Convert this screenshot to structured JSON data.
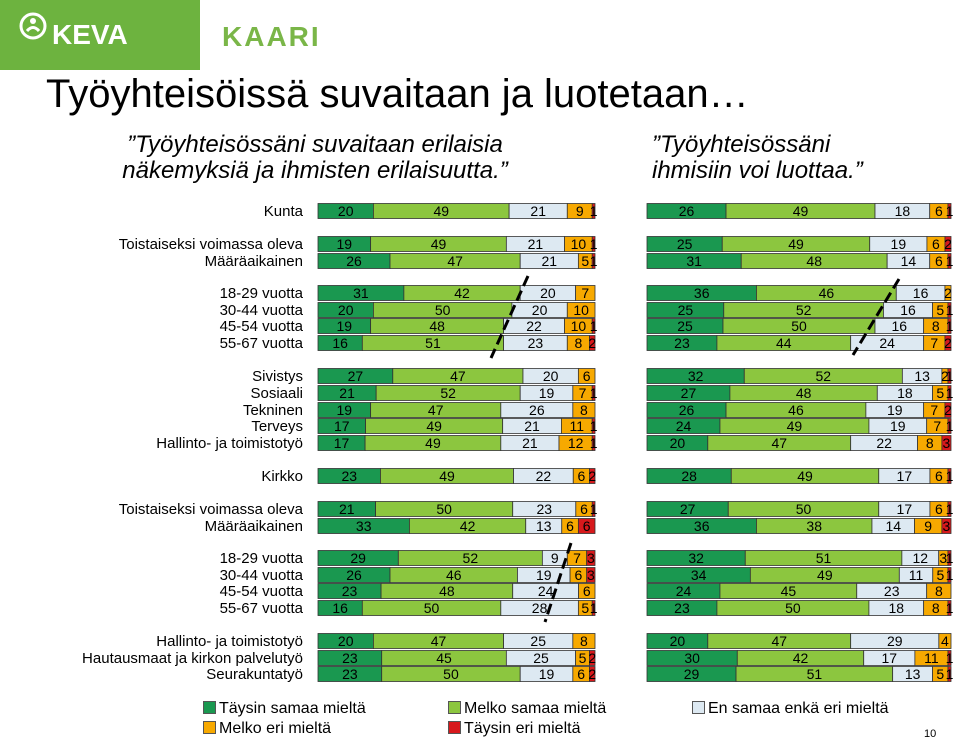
{
  "brand": {
    "logo1": "KEVA",
    "logo2": "KAARI",
    "colors": {
      "green_bar": "#6db33f",
      "logo_text": "#ffffff",
      "kaari_text": "#7ab648"
    }
  },
  "title": "Työyhteisöissä suvaitaan ja luotetaan…",
  "subtitle_left": [
    "”Työyhteisössäni suvaitaan erilaisia",
    "näkemyksiä ja ihmisten erilaisuutta.”"
  ],
  "subtitle_right": [
    "”Työyhteisössäni",
    "ihmisiin voi luottaa.”"
  ],
  "page_number": "10",
  "chart_data": {
    "type": "bar",
    "stacked": "horizontal-100-percent",
    "colors": [
      "#1a9850",
      "#8cc63f",
      "#dde9f2",
      "#f7a900",
      "#d7191c"
    ],
    "legend": [
      "Täysin samaa mieltä",
      "Melko samaa mieltä",
      "En samaa enkä eri mieltä",
      "Melko eri mieltä",
      "Täysin eri mieltä"
    ],
    "rows": [
      {
        "label": "Kunta",
        "left": [
          20,
          49,
          21,
          9,
          1
        ],
        "right": [
          26,
          49,
          18,
          6,
          1
        ],
        "left_text": [
          "20",
          "49",
          "21",
          "9",
          "1"
        ],
        "right_text": [
          "26",
          "49",
          "18",
          "6",
          "1"
        ]
      },
      {
        "label": "Toistaiseksi voimassa oleva",
        "left": [
          19,
          49,
          21,
          10,
          1
        ],
        "right": [
          25,
          49,
          19,
          6,
          2
        ],
        "left_text": [
          "19",
          "49",
          "21",
          "10",
          "1"
        ],
        "right_text": [
          "25",
          "49",
          "19",
          "6",
          "2"
        ]
      },
      {
        "label": "Määräaikainen",
        "left": [
          26,
          47,
          21,
          5,
          1
        ],
        "right": [
          31,
          48,
          14,
          6,
          1
        ],
        "left_text": [
          "26",
          "47",
          "21",
          "5",
          "1"
        ],
        "right_text": [
          "31",
          "48",
          "14",
          "6",
          "1"
        ]
      },
      {
        "label": "18-29 vuotta",
        "left": [
          31,
          42,
          20,
          7,
          0
        ],
        "right": [
          36,
          46,
          16,
          2,
          0
        ],
        "left_text": [
          "31",
          "42",
          "20",
          "7",
          ""
        ],
        "right_text": [
          "36",
          "46",
          "16",
          "2",
          ""
        ]
      },
      {
        "label": "30-44 vuotta",
        "left": [
          20,
          50,
          20,
          10,
          0
        ],
        "right": [
          25,
          52,
          16,
          5,
          1
        ],
        "left_text": [
          "20",
          "50",
          "20",
          "10",
          ""
        ],
        "right_text": [
          "25",
          "52",
          "16",
          "5",
          "1"
        ]
      },
      {
        "label": "45-54 vuotta",
        "left": [
          19,
          48,
          22,
          10,
          1
        ],
        "right": [
          25,
          50,
          16,
          8,
          1
        ],
        "left_text": [
          "19",
          "48",
          "22",
          "10",
          "1"
        ],
        "right_text": [
          "25",
          "50",
          "16",
          "8",
          "1"
        ]
      },
      {
        "label": "55-67 vuotta",
        "left": [
          16,
          51,
          23,
          8,
          2
        ],
        "right": [
          23,
          44,
          24,
          7,
          2
        ],
        "left_text": [
          "16",
          "51",
          "23",
          "8",
          "2"
        ],
        "right_text": [
          "23",
          "44",
          "24",
          "7",
          "2"
        ]
      },
      {
        "label": "Sivistys",
        "left": [
          27,
          47,
          20,
          6,
          0
        ],
        "right": [
          32,
          52,
          13,
          2,
          1
        ],
        "left_text": [
          "27",
          "47",
          "20",
          "6",
          ""
        ],
        "right_text": [
          "32",
          "52",
          "13",
          "2",
          "1"
        ]
      },
      {
        "label": "Sosiaali",
        "left": [
          21,
          52,
          19,
          7,
          1
        ],
        "right": [
          27,
          48,
          18,
          5,
          1
        ],
        "left_text": [
          "21",
          "52",
          "19",
          "7",
          "1"
        ],
        "right_text": [
          "27",
          "48",
          "18",
          "5",
          "1"
        ]
      },
      {
        "label": "Tekninen",
        "left": [
          19,
          47,
          26,
          8,
          0
        ],
        "right": [
          26,
          46,
          19,
          7,
          2
        ],
        "left_text": [
          "19",
          "47",
          "26",
          "8",
          ""
        ],
        "right_text": [
          "26",
          "46",
          "19",
          "7",
          "2"
        ]
      },
      {
        "label": "Terveys",
        "left": [
          17,
          49,
          21,
          11,
          1
        ],
        "right": [
          24,
          49,
          19,
          7,
          1
        ],
        "left_text": [
          "17",
          "49",
          "21",
          "11",
          "1"
        ],
        "right_text": [
          "24",
          "49",
          "19",
          "7",
          "1"
        ]
      },
      {
        "label": "Hallinto- ja toimistotyö",
        "left": [
          17,
          49,
          21,
          12,
          1
        ],
        "right": [
          20,
          47,
          22,
          8,
          3
        ],
        "left_text": [
          "17",
          "49",
          "21",
          "12",
          "1"
        ],
        "right_text": [
          "20",
          "47",
          "22",
          "8",
          "3"
        ]
      },
      {
        "label": "Kirkko",
        "left": [
          23,
          49,
          22,
          6,
          2
        ],
        "right": [
          28,
          49,
          17,
          6,
          1
        ],
        "left_text": [
          "23",
          "49",
          "22",
          "6",
          "2"
        ],
        "right_text": [
          "28",
          "49",
          "17",
          "6",
          "1"
        ]
      },
      {
        "label": "Toistaiseksi voimassa oleva",
        "left": [
          21,
          50,
          23,
          6,
          1
        ],
        "right": [
          27,
          50,
          17,
          6,
          1
        ],
        "left_text": [
          "21",
          "50",
          "23",
          "6",
          "1"
        ],
        "right_text": [
          "27",
          "50",
          "17",
          "6",
          "1"
        ]
      },
      {
        "label": "Määräaikainen",
        "left": [
          33,
          42,
          13,
          6,
          6
        ],
        "right": [
          36,
          38,
          14,
          9,
          3
        ],
        "left_text": [
          "33",
          "42",
          "13",
          "6",
          "6"
        ],
        "right_text": [
          "36",
          "38",
          "14",
          "9",
          "3"
        ]
      },
      {
        "label": "18-29 vuotta",
        "left": [
          29,
          52,
          9,
          7,
          3
        ],
        "right": [
          32,
          51,
          12,
          3,
          1
        ],
        "left_text": [
          "29",
          "52",
          "9",
          "7",
          "3"
        ],
        "right_text": [
          "32",
          "51",
          "12",
          "3",
          "1"
        ]
      },
      {
        "label": "30-44 vuotta",
        "left": [
          26,
          46,
          19,
          6,
          3
        ],
        "right": [
          34,
          49,
          11,
          5,
          1
        ],
        "left_text": [
          "26",
          "46",
          "19",
          "6",
          "3"
        ],
        "right_text": [
          "34",
          "49",
          "11",
          "5",
          "1"
        ]
      },
      {
        "label": "45-54 vuotta",
        "left": [
          23,
          48,
          24,
          6,
          0
        ],
        "right": [
          24,
          45,
          23,
          8,
          0
        ],
        "left_text": [
          "23",
          "48",
          "24",
          "6",
          ""
        ],
        "right_text": [
          "24",
          "45",
          "23",
          "8",
          ""
        ]
      },
      {
        "label": "55-67 vuotta",
        "left": [
          16,
          50,
          28,
          5,
          1
        ],
        "right": [
          23,
          50,
          18,
          8,
          1
        ],
        "left_text": [
          "16",
          "50",
          "28",
          "5",
          "1"
        ],
        "right_text": [
          "23",
          "50",
          "18",
          "8",
          "1"
        ]
      },
      {
        "label": "Hallinto- ja toimistotyö",
        "left": [
          20,
          47,
          25,
          8,
          0
        ],
        "right": [
          20,
          47,
          29,
          4,
          0
        ],
        "left_text": [
          "20",
          "47",
          "25",
          "8",
          ""
        ],
        "right_text": [
          "20",
          "47",
          "29",
          "4",
          ""
        ]
      },
      {
        "label": "Hautausmaat ja kirkon palvelutyö",
        "left": [
          23,
          45,
          25,
          5,
          2
        ],
        "right": [
          30,
          42,
          17,
          11,
          1
        ],
        "left_text": [
          "23",
          "45",
          "25",
          "5",
          "2"
        ],
        "right_text": [
          "30",
          "42",
          "17",
          "11",
          "1"
        ]
      },
      {
        "label": "Seurakuntatyö",
        "left": [
          23,
          50,
          19,
          6,
          2
        ],
        "right": [
          29,
          51,
          13,
          5,
          1
        ],
        "left_text": [
          "23",
          "50",
          "19",
          "6",
          "2"
        ],
        "right_text": [
          "29",
          "51",
          "13",
          "5",
          "1"
        ]
      }
    ]
  }
}
